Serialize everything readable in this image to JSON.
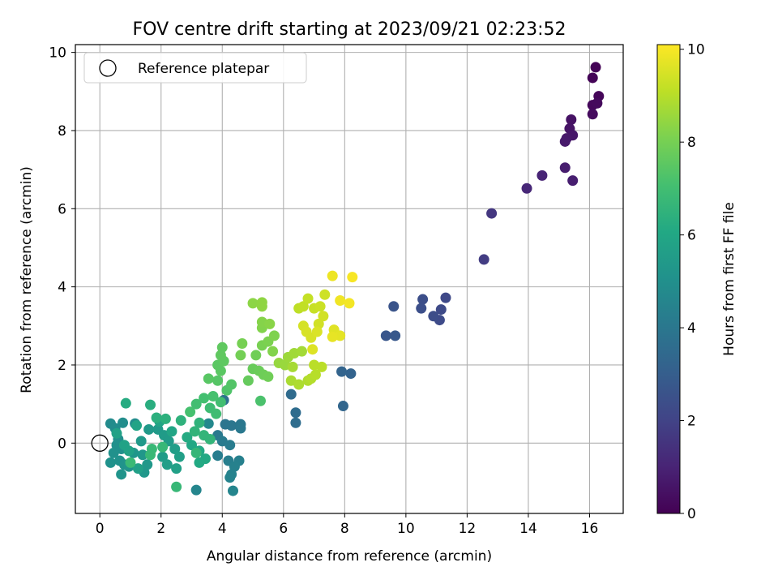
{
  "chart_data": {
    "type": "scatter",
    "title": "FOV centre drift starting at 2023/09/21 02:23:52",
    "xlabel": "Angular distance from reference (arcmin)",
    "ylabel": "Rotation from reference (arcmin)",
    "xlim": [
      -0.8,
      17.1
    ],
    "ylim": [
      -1.8,
      10.2
    ],
    "xticks": [
      0,
      2,
      4,
      6,
      8,
      10,
      12,
      14,
      16
    ],
    "yticks": [
      0,
      2,
      4,
      6,
      8,
      10
    ],
    "grid": true,
    "legend": {
      "position": "top-left",
      "entries": [
        "Reference platepar"
      ]
    },
    "reference_point": {
      "x": 0,
      "y": 0,
      "marker": "open-circle"
    },
    "colorbar": {
      "label": "Hours from first FF file",
      "range": [
        0,
        10.1
      ],
      "ticks": [
        0,
        2,
        4,
        6,
        8,
        10
      ],
      "colormap": "viridis"
    },
    "series": [
      {
        "values": [
          {
            "x": 16.2,
            "y": 9.62,
            "c": 0.05
          },
          {
            "x": 16.1,
            "y": 9.35,
            "c": 0.1
          },
          {
            "x": 16.3,
            "y": 8.88,
            "c": 0.15
          },
          {
            "x": 16.1,
            "y": 8.65,
            "c": 0.2
          },
          {
            "x": 16.25,
            "y": 8.7,
            "c": 0.25
          },
          {
            "x": 16.1,
            "y": 8.42,
            "c": 0.3
          },
          {
            "x": 15.4,
            "y": 8.28,
            "c": 0.5
          },
          {
            "x": 15.35,
            "y": 8.05,
            "c": 0.55
          },
          {
            "x": 15.45,
            "y": 7.88,
            "c": 0.6
          },
          {
            "x": 15.25,
            "y": 7.8,
            "c": 0.65
          },
          {
            "x": 15.2,
            "y": 7.72,
            "c": 0.7
          },
          {
            "x": 15.2,
            "y": 7.05,
            "c": 0.8
          },
          {
            "x": 15.45,
            "y": 6.72,
            "c": 0.85
          },
          {
            "x": 14.45,
            "y": 6.85,
            "c": 1.0
          },
          {
            "x": 13.95,
            "y": 6.52,
            "c": 1.1
          },
          {
            "x": 12.8,
            "y": 5.88,
            "c": 1.6
          },
          {
            "x": 12.55,
            "y": 4.7,
            "c": 1.8
          },
          {
            "x": 11.3,
            "y": 3.72,
            "c": 2.2
          },
          {
            "x": 11.15,
            "y": 3.42,
            "c": 2.25
          },
          {
            "x": 11.1,
            "y": 3.15,
            "c": 2.3
          },
          {
            "x": 10.9,
            "y": 3.25,
            "c": 2.35
          },
          {
            "x": 10.55,
            "y": 3.68,
            "c": 2.4
          },
          {
            "x": 10.5,
            "y": 3.45,
            "c": 2.45
          },
          {
            "x": 9.6,
            "y": 3.5,
            "c": 2.6
          },
          {
            "x": 9.35,
            "y": 2.75,
            "c": 2.7
          },
          {
            "x": 9.65,
            "y": 2.75,
            "c": 2.75
          },
          {
            "x": 8.2,
            "y": 1.78,
            "c": 3.2
          },
          {
            "x": 7.9,
            "y": 1.83,
            "c": 3.25
          },
          {
            "x": 7.95,
            "y": 0.95,
            "c": 3.3
          },
          {
            "x": 6.25,
            "y": 1.25,
            "c": 3.5
          },
          {
            "x": 6.4,
            "y": 0.78,
            "c": 3.55
          },
          {
            "x": 6.4,
            "y": 0.52,
            "c": 3.6
          },
          {
            "x": 4.05,
            "y": 1.1,
            "c": 3.8
          },
          {
            "x": 4.1,
            "y": 0.48,
            "c": 3.9
          },
          {
            "x": 4.3,
            "y": 0.45,
            "c": 3.95
          },
          {
            "x": 4.6,
            "y": 0.48,
            "c": 4.0
          },
          {
            "x": 4.6,
            "y": 0.38,
            "c": 4.05
          },
          {
            "x": 3.85,
            "y": 0.2,
            "c": 4.1
          },
          {
            "x": 4.0,
            "y": 0.05,
            "c": 4.15
          },
          {
            "x": 4.25,
            "y": -0.05,
            "c": 4.2
          },
          {
            "x": 3.85,
            "y": -0.32,
            "c": 4.25
          },
          {
            "x": 4.2,
            "y": -0.45,
            "c": 4.3
          },
          {
            "x": 4.55,
            "y": -0.45,
            "c": 4.35
          },
          {
            "x": 4.4,
            "y": -0.6,
            "c": 4.4
          },
          {
            "x": 4.3,
            "y": -0.8,
            "c": 4.45
          },
          {
            "x": 4.25,
            "y": -0.88,
            "c": 4.5
          },
          {
            "x": 4.35,
            "y": -1.22,
            "c": 4.55
          },
          {
            "x": 3.15,
            "y": -1.2,
            "c": 4.6
          },
          {
            "x": 3.55,
            "y": 0.5,
            "c": 4.7
          },
          {
            "x": 0.35,
            "y": 0.5,
            "c": 4.8
          },
          {
            "x": 0.5,
            "y": 0.38,
            "c": 4.85
          },
          {
            "x": 0.75,
            "y": 0.52,
            "c": 4.9
          },
          {
            "x": 1.15,
            "y": 0.5,
            "c": 4.9
          },
          {
            "x": 0.6,
            "y": 0.1,
            "c": 4.95
          },
          {
            "x": 0.55,
            "y": -0.05,
            "c": 5.0
          },
          {
            "x": 0.7,
            "y": -0.15,
            "c": 5.0
          },
          {
            "x": 0.45,
            "y": -0.25,
            "c": 5.05
          },
          {
            "x": 0.35,
            "y": -0.5,
            "c": 5.1
          },
          {
            "x": 0.65,
            "y": -0.45,
            "c": 5.1
          },
          {
            "x": 0.8,
            "y": -0.55,
            "c": 5.15
          },
          {
            "x": 0.95,
            "y": -0.6,
            "c": 5.2
          },
          {
            "x": 0.7,
            "y": -0.8,
            "c": 5.2
          },
          {
            "x": 1.1,
            "y": -0.25,
            "c": 5.25
          },
          {
            "x": 1.4,
            "y": -0.3,
            "c": 5.3
          },
          {
            "x": 1.45,
            "y": -0.75,
            "c": 5.3
          },
          {
            "x": 1.55,
            "y": -0.55,
            "c": 5.35
          },
          {
            "x": 1.35,
            "y": 0.05,
            "c": 5.4
          },
          {
            "x": 1.6,
            "y": 0.35,
            "c": 5.4
          },
          {
            "x": 1.9,
            "y": 0.35,
            "c": 5.45
          },
          {
            "x": 2.1,
            "y": 0.2,
            "c": 5.5
          },
          {
            "x": 2.25,
            "y": 0.05,
            "c": 5.5
          },
          {
            "x": 2.05,
            "y": -0.35,
            "c": 5.55
          },
          {
            "x": 2.45,
            "y": -0.15,
            "c": 5.6
          },
          {
            "x": 2.2,
            "y": -0.55,
            "c": 5.6
          },
          {
            "x": 2.6,
            "y": -0.35,
            "c": 5.65
          },
          {
            "x": 2.5,
            "y": -0.65,
            "c": 5.7
          },
          {
            "x": 1.25,
            "y": -0.65,
            "c": 5.7
          },
          {
            "x": 0.55,
            "y": 0.25,
            "c": 5.75
          },
          {
            "x": 0.8,
            "y": -0.05,
            "c": 5.8
          },
          {
            "x": 0.95,
            "y": -0.2,
            "c": 5.8
          },
          {
            "x": 1.2,
            "y": 0.45,
            "c": 5.85
          },
          {
            "x": 1.95,
            "y": 0.55,
            "c": 5.9
          },
          {
            "x": 2.35,
            "y": 0.3,
            "c": 5.95
          },
          {
            "x": 3.0,
            "y": -0.05,
            "c": 6.0
          },
          {
            "x": 3.25,
            "y": -0.2,
            "c": 6.05
          },
          {
            "x": 3.45,
            "y": -0.4,
            "c": 6.1
          },
          {
            "x": 3.25,
            "y": -0.5,
            "c": 6.1
          },
          {
            "x": 2.85,
            "y": 0.15,
            "c": 6.15
          },
          {
            "x": 0.85,
            "y": 1.02,
            "c": 6.2
          },
          {
            "x": 1.65,
            "y": 0.98,
            "c": 6.3
          },
          {
            "x": 1.85,
            "y": 0.65,
            "c": 6.35
          },
          {
            "x": 2.15,
            "y": 0.62,
            "c": 6.4
          },
          {
            "x": 2.65,
            "y": 0.58,
            "c": 6.45
          },
          {
            "x": 3.25,
            "y": 0.52,
            "c": 6.5
          },
          {
            "x": 3.1,
            "y": 0.3,
            "c": 6.55
          },
          {
            "x": 3.4,
            "y": 0.2,
            "c": 6.6
          },
          {
            "x": 3.6,
            "y": 0.1,
            "c": 6.6
          },
          {
            "x": 3.15,
            "y": -0.25,
            "c": 6.65
          },
          {
            "x": 2.5,
            "y": -1.12,
            "c": 6.7
          },
          {
            "x": 2.05,
            "y": -0.1,
            "c": 6.7
          },
          {
            "x": 1.7,
            "y": -0.15,
            "c": 6.75
          },
          {
            "x": 1.65,
            "y": -0.3,
            "c": 6.75
          },
          {
            "x": 1.0,
            "y": -0.5,
            "c": 6.8
          },
          {
            "x": 3.6,
            "y": 0.9,
            "c": 6.9
          },
          {
            "x": 3.8,
            "y": 0.75,
            "c": 6.95
          },
          {
            "x": 3.95,
            "y": 1.05,
            "c": 7.0
          },
          {
            "x": 3.15,
            "y": 1.0,
            "c": 7.0
          },
          {
            "x": 3.4,
            "y": 1.15,
            "c": 7.05
          },
          {
            "x": 3.7,
            "y": 1.2,
            "c": 7.1
          },
          {
            "x": 2.95,
            "y": 0.8,
            "c": 7.1
          },
          {
            "x": 5.25,
            "y": 1.08,
            "c": 7.2
          },
          {
            "x": 4.15,
            "y": 1.35,
            "c": 7.3
          },
          {
            "x": 4.3,
            "y": 1.5,
            "c": 7.35
          },
          {
            "x": 3.85,
            "y": 1.6,
            "c": 7.4
          },
          {
            "x": 3.55,
            "y": 1.65,
            "c": 7.45
          },
          {
            "x": 3.95,
            "y": 1.85,
            "c": 7.5
          },
          {
            "x": 3.85,
            "y": 2.0,
            "c": 7.5
          },
          {
            "x": 4.05,
            "y": 2.1,
            "c": 7.55
          },
          {
            "x": 3.95,
            "y": 2.25,
            "c": 7.6
          },
          {
            "x": 4.0,
            "y": 2.45,
            "c": 7.6
          },
          {
            "x": 4.85,
            "y": 1.6,
            "c": 7.7
          },
          {
            "x": 5.0,
            "y": 1.9,
            "c": 7.75
          },
          {
            "x": 5.2,
            "y": 1.85,
            "c": 7.8
          },
          {
            "x": 5.35,
            "y": 1.75,
            "c": 7.85
          },
          {
            "x": 5.5,
            "y": 1.7,
            "c": 7.9
          },
          {
            "x": 5.1,
            "y": 2.25,
            "c": 7.9
          },
          {
            "x": 4.6,
            "y": 2.25,
            "c": 7.95
          },
          {
            "x": 4.65,
            "y": 2.55,
            "c": 8.0
          },
          {
            "x": 5.3,
            "y": 2.5,
            "c": 8.05
          },
          {
            "x": 5.5,
            "y": 2.6,
            "c": 8.1
          },
          {
            "x": 5.7,
            "y": 2.75,
            "c": 8.15
          },
          {
            "x": 5.65,
            "y": 2.35,
            "c": 8.2
          },
          {
            "x": 5.3,
            "y": 2.95,
            "c": 8.2
          },
          {
            "x": 5.3,
            "y": 3.1,
            "c": 8.25
          },
          {
            "x": 5.55,
            "y": 3.05,
            "c": 8.3
          },
          {
            "x": 5.0,
            "y": 3.58,
            "c": 8.35
          },
          {
            "x": 5.3,
            "y": 3.5,
            "c": 8.4
          },
          {
            "x": 5.3,
            "y": 3.6,
            "c": 8.4
          },
          {
            "x": 5.85,
            "y": 2.05,
            "c": 8.5
          },
          {
            "x": 6.05,
            "y": 2.0,
            "c": 8.55
          },
          {
            "x": 6.15,
            "y": 2.2,
            "c": 8.6
          },
          {
            "x": 6.35,
            "y": 2.3,
            "c": 8.65
          },
          {
            "x": 6.6,
            "y": 2.35,
            "c": 8.7
          },
          {
            "x": 6.3,
            "y": 1.95,
            "c": 8.75
          },
          {
            "x": 6.25,
            "y": 1.6,
            "c": 8.8
          },
          {
            "x": 6.5,
            "y": 1.5,
            "c": 8.85
          },
          {
            "x": 6.8,
            "y": 1.6,
            "c": 8.9
          },
          {
            "x": 6.9,
            "y": 1.65,
            "c": 8.95
          },
          {
            "x": 7.05,
            "y": 1.75,
            "c": 9.0
          },
          {
            "x": 7.0,
            "y": 2.0,
            "c": 9.05
          },
          {
            "x": 7.25,
            "y": 1.95,
            "c": 9.05
          },
          {
            "x": 6.5,
            "y": 3.45,
            "c": 9.1
          },
          {
            "x": 6.65,
            "y": 3.5,
            "c": 9.15
          },
          {
            "x": 6.8,
            "y": 3.7,
            "c": 9.2
          },
          {
            "x": 7.0,
            "y": 3.45,
            "c": 9.25
          },
          {
            "x": 7.2,
            "y": 3.5,
            "c": 9.3
          },
          {
            "x": 7.35,
            "y": 3.8,
            "c": 9.35
          },
          {
            "x": 7.3,
            "y": 3.25,
            "c": 9.4
          },
          {
            "x": 7.15,
            "y": 3.05,
            "c": 9.4
          },
          {
            "x": 6.65,
            "y": 3.0,
            "c": 9.45
          },
          {
            "x": 6.75,
            "y": 2.85,
            "c": 9.5
          },
          {
            "x": 6.9,
            "y": 2.7,
            "c": 9.5
          },
          {
            "x": 7.1,
            "y": 2.85,
            "c": 9.55
          },
          {
            "x": 6.95,
            "y": 2.4,
            "c": 9.6
          },
          {
            "x": 7.65,
            "y": 2.9,
            "c": 9.65
          },
          {
            "x": 7.85,
            "y": 2.75,
            "c": 9.7
          },
          {
            "x": 7.6,
            "y": 2.72,
            "c": 9.75
          },
          {
            "x": 7.6,
            "y": 4.28,
            "c": 9.85
          },
          {
            "x": 7.85,
            "y": 3.65,
            "c": 9.9
          },
          {
            "x": 8.15,
            "y": 3.58,
            "c": 9.95
          },
          {
            "x": 8.25,
            "y": 4.25,
            "c": 10.0
          }
        ]
      }
    ]
  }
}
